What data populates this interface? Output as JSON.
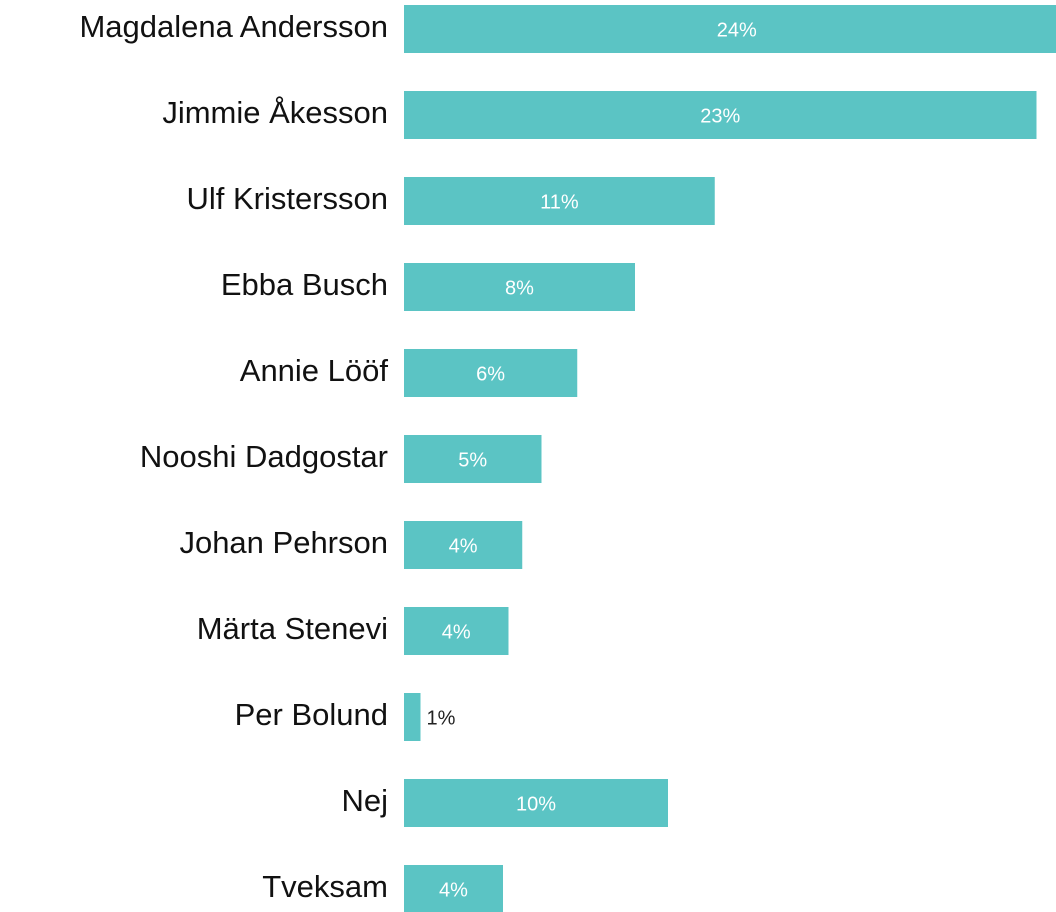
{
  "chart_data": {
    "type": "hbar",
    "categories": [
      "Magdalena Andersson",
      "Jimmie Åkesson",
      "Ulf Kristersson",
      "Ebba Busch",
      "Annie Lööf",
      "Nooshi Dadgostar",
      "Johan Pehrson",
      "Märta Stenevi",
      "Per Bolund",
      "Nej",
      "Tveksam"
    ],
    "values": [
      24.2,
      23.0,
      11.3,
      8.4,
      6.3,
      5.0,
      4.3,
      3.8,
      0.6,
      9.6,
      3.6
    ],
    "value_labels": [
      "24%",
      "23%",
      "11%",
      "8%",
      "6%",
      "5%",
      "4%",
      "4%",
      "1%",
      "10%",
      "4%"
    ],
    "color": "#5bc4c4",
    "xlim": [
      0,
      24
    ]
  }
}
